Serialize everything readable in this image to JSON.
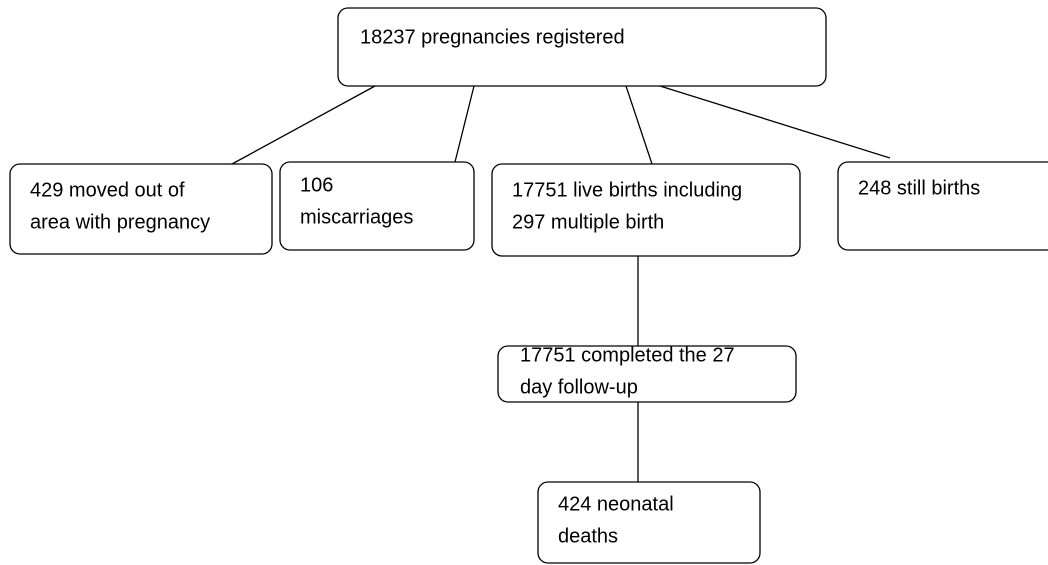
{
  "nodes": [
    {
      "lines": [
        "18237 pregnancies registered"
      ]
    },
    {
      "lines": [
        "429 moved out of",
        "area with pregnancy"
      ]
    },
    {
      "lines": [
        "106",
        "miscarriages"
      ]
    },
    {
      "lines": [
        "17751 live births including",
        "297 multiple birth"
      ]
    },
    {
      "lines": [
        "248 still births"
      ]
    },
    {
      "lines": [
        "17751 completed the 27",
        "day follow-up"
      ]
    },
    {
      "lines": [
        "424 neonatal",
        "deaths"
      ]
    }
  ]
}
